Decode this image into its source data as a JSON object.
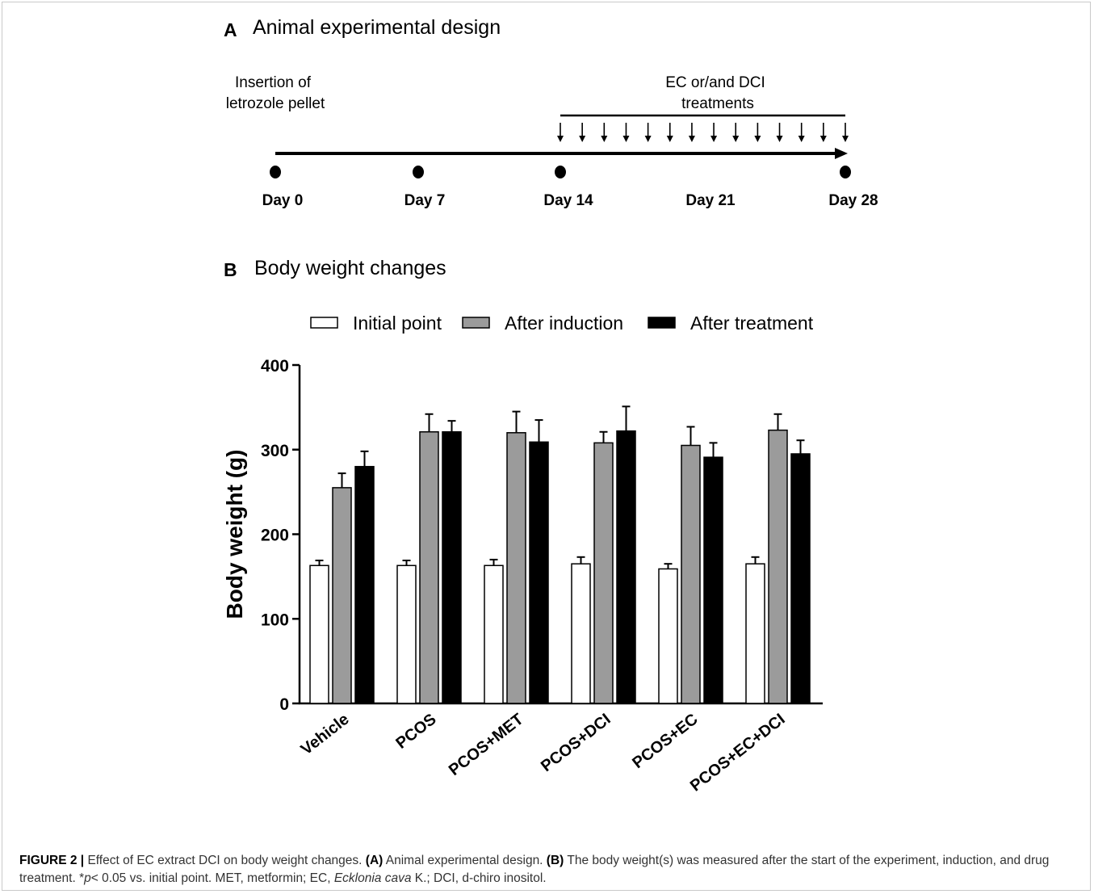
{
  "panel_a": {
    "letter": "A",
    "title": "Animal experimental design",
    "insertion_line1": "Insertion of",
    "insertion_line2": "letrozole pellet",
    "treatment_line1": "EC or/and DCI",
    "treatment_line2": "treatments",
    "days": [
      "Day 0",
      "Day 7",
      "Day 14",
      "Day 21",
      "Day 28"
    ]
  },
  "panel_b": {
    "letter": "B",
    "title": "Body weight changes"
  },
  "chart_data": {
    "type": "bar",
    "categories": [
      "Vehicle",
      "PCOS",
      "PCOS+MET",
      "PCOS+DCI",
      "PCOS+EC",
      "PCOS+EC+DCI"
    ],
    "series": [
      {
        "name": "Initial point",
        "color": "#ffffff",
        "values": [
          163,
          163,
          163,
          165,
          159,
          165
        ],
        "errors": [
          6,
          6,
          7,
          8,
          6,
          8
        ]
      },
      {
        "name": "After induction",
        "color": "#9b9b9b",
        "values": [
          255,
          321,
          320,
          308,
          305,
          323
        ],
        "errors": [
          17,
          21,
          25,
          13,
          22,
          19
        ]
      },
      {
        "name": "After treatment",
        "color": "#000000",
        "values": [
          280,
          321,
          309,
          322,
          291,
          295
        ],
        "errors": [
          18,
          13,
          26,
          29,
          17,
          16
        ]
      }
    ],
    "ylabel": "Body weight (g)",
    "xlabel": "",
    "ylim": [
      0,
      400
    ],
    "yticks": [
      "0",
      "100",
      "200",
      "300",
      "400"
    ],
    "legend_placement": "top",
    "grid": false
  },
  "caption": {
    "label": "FIGURE 2 |",
    "t1": " Effect of EC extract DCI on body weight changes. ",
    "b1": "(A)",
    "t2": " Animal experimental design. ",
    "b2": "(B)",
    "t3": " The body weight(s) was measured after the start of the experiment, induction, and drug treatment. *",
    "p": "p",
    "t4": "< 0.05 vs. initial point. MET, metformin; EC, ",
    "species": "Ecklonia cava",
    "t5": " K.; DCI, d-chiro inositol."
  }
}
